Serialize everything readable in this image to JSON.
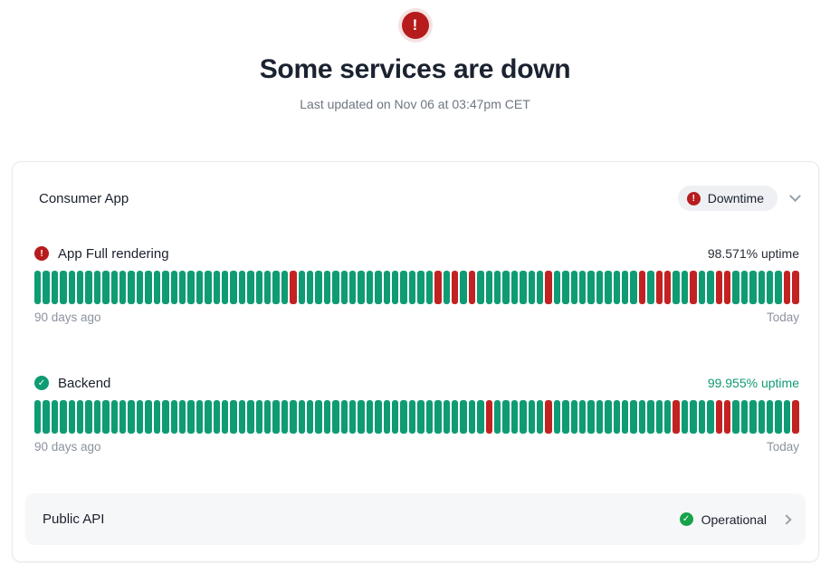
{
  "hero": {
    "alert_glyph": "!",
    "title": "Some services are down",
    "subtitle": "Last updated on Nov 06 at 03:47pm CET"
  },
  "card": {
    "group_name": "Consumer App",
    "status_badge": {
      "label": "Downtime",
      "glyph": "!"
    },
    "services": [
      {
        "name": "App Full rendering",
        "status": "down",
        "icon_glyph": "!",
        "uptime_label": "98.571% uptime",
        "range_start": "90 days ago",
        "range_end": "Today",
        "days": 90,
        "down_day_indices": [
          30,
          47,
          49,
          51,
          60,
          71,
          73,
          74,
          77,
          80,
          81,
          88,
          89
        ]
      },
      {
        "name": "Backend",
        "status": "operational",
        "icon_glyph": "✓",
        "uptime_label": "99.955% uptime",
        "range_start": "90 days ago",
        "range_end": "Today",
        "days": 90,
        "down_day_indices": [
          53,
          60,
          75,
          80,
          81,
          89
        ]
      }
    ],
    "linked_group": {
      "name": "Public API",
      "status_label": "Operational",
      "icon_glyph": "✓"
    }
  },
  "colors": {
    "bar_green": "#0f9b73",
    "bar_red": "#c32222",
    "icon_red": "#b71c1c",
    "icon_teal_green": "#0f9b73",
    "icon_green": "#16a34a",
    "uptime_green_text": "#0f9b73"
  }
}
